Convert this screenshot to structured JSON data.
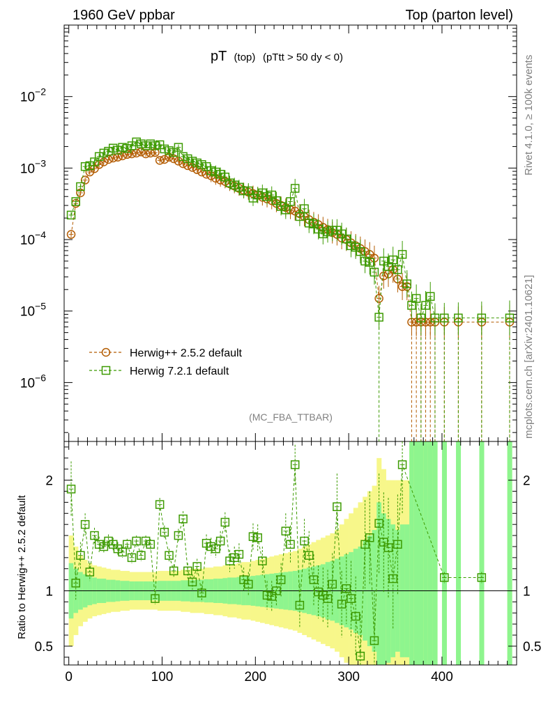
{
  "header": {
    "left": "1960 GeV ppbar",
    "right": "Top (parton level)"
  },
  "side_labels": {
    "rivet": "Rivet 4.1.0, ≥ 100k events",
    "mcplots": "mcplots.cern.ch [arXiv:2401.10621]"
  },
  "plot_title": {
    "main": "pT",
    "sub1": "(top)",
    "sub2": "(pTtt > 50 dy < 0)"
  },
  "analysis_tag": "(MC_FBA_TTBAR)",
  "colors": {
    "herwigpp": "#b35b00",
    "herwig7": "#3c9a00",
    "band_inner": "#8ef58e",
    "band_outer": "#f7f78a"
  },
  "chart_data": [
    {
      "type": "scatter",
      "panel": "main",
      "yscale": "log",
      "xlim": [
        -5,
        480
      ],
      "ylim": [
        1.5e-07,
        0.1
      ],
      "y_tick_labels": [
        {
          "base": "10",
          "exp": "−2",
          "value": 0.01
        },
        {
          "base": "10",
          "exp": "−3",
          "value": 0.001
        },
        {
          "base": "10",
          "exp": "−4",
          "value": 0.0001
        },
        {
          "base": "10",
          "exp": "−5",
          "value": 1e-05
        },
        {
          "base": "10",
          "exp": "−6",
          "value": 1e-06
        }
      ],
      "legend": {
        "position": "lower-left",
        "entries": [
          "Herwig++ 2.5.2 default",
          "Herwig 7.2.1 default"
        ]
      },
      "series": [
        {
          "name": "Herwig++ 2.5.2 default",
          "marker": "circle",
          "x": [
            2.5,
            7.5,
            12.5,
            17.5,
            22.5,
            27.5,
            32.5,
            37.5,
            42.5,
            47.5,
            52.5,
            57.5,
            62.5,
            67.5,
            72.5,
            77.5,
            82.5,
            87.5,
            92.5,
            97.5,
            102.5,
            107.5,
            112.5,
            117.5,
            122.5,
            127.5,
            132.5,
            137.5,
            142.5,
            147.5,
            152.5,
            157.5,
            162.5,
            167.5,
            172.5,
            177.5,
            182.5,
            187.5,
            192.5,
            197.5,
            202.5,
            207.5,
            212.5,
            217.5,
            222.5,
            227.5,
            232.5,
            237.5,
            242.5,
            247.5,
            252.5,
            257.5,
            262.5,
            267.5,
            272.5,
            277.5,
            282.5,
            287.5,
            292.5,
            297.5,
            302.5,
            307.5,
            312.5,
            317.5,
            322.5,
            327.5,
            332.5,
            337.5,
            342.5,
            347.5,
            352.5,
            357.5,
            362.5,
            367.5,
            372.5,
            377.5,
            382.5,
            387.5,
            392.5,
            402.5,
            417.5,
            442.5,
            472.5
          ],
          "y": [
            0.000118,
            0.00032,
            0.00045,
            0.00068,
            0.00088,
            0.00098,
            0.00112,
            0.00122,
            0.00132,
            0.00138,
            0.00142,
            0.00148,
            0.00155,
            0.00158,
            0.00162,
            0.00168,
            0.00158,
            0.00162,
            0.00165,
            0.00128,
            0.00132,
            0.00142,
            0.00135,
            0.00125,
            0.00115,
            0.00108,
            0.00102,
            0.00095,
            0.00088,
            0.00082,
            0.00078,
            0.00072,
            0.00068,
            0.00065,
            0.0006,
            0.00056,
            0.00052,
            0.00049,
            0.00046,
            0.00044,
            0.00042,
            0.00039,
            0.00037,
            0.00035,
            0.00032,
            0.0003,
            0.00028,
            0.00026,
            0.00025,
            0.00023,
            0.00021,
            0.00019,
            0.000175,
            0.000162,
            0.000148,
            0.000138,
            0.000125,
            0.000118,
            0.000105,
            0.0001,
            9e-05,
            8.2e-05,
            7.5e-05,
            6.8e-05,
            6.2e-05,
            5.5e-05,
            1.5e-05,
            3.1e-05,
            3.3e-05,
            3.8e-05,
            2.8e-05,
            2.2e-05,
            2.2e-05,
            7e-06,
            7e-06,
            7e-06,
            7e-06,
            7e-06,
            7e-06,
            7e-06,
            7e-06,
            7e-06,
            7e-06
          ]
        },
        {
          "name": "Herwig 7.2.1 default",
          "marker": "square",
          "x": [
            2.5,
            7.5,
            12.5,
            17.5,
            22.5,
            27.5,
            32.5,
            37.5,
            42.5,
            47.5,
            52.5,
            57.5,
            62.5,
            67.5,
            72.5,
            77.5,
            82.5,
            87.5,
            92.5,
            97.5,
            102.5,
            107.5,
            112.5,
            117.5,
            122.5,
            127.5,
            132.5,
            137.5,
            142.5,
            147.5,
            152.5,
            157.5,
            162.5,
            167.5,
            172.5,
            177.5,
            182.5,
            187.5,
            192.5,
            197.5,
            202.5,
            207.5,
            212.5,
            217.5,
            222.5,
            227.5,
            232.5,
            237.5,
            242.5,
            247.5,
            252.5,
            257.5,
            262.5,
            267.5,
            272.5,
            277.5,
            282.5,
            287.5,
            292.5,
            297.5,
            302.5,
            307.5,
            312.5,
            317.5,
            322.5,
            327.5,
            332.5,
            337.5,
            342.5,
            347.5,
            352.5,
            357.5,
            362.5,
            367.5,
            372.5,
            377.5,
            382.5,
            387.5,
            392.5,
            402.5,
            417.5,
            442.5,
            472.5
          ],
          "y": [
            0.00022,
            0.00034,
            0.00055,
            0.00105,
            0.00108,
            0.00122,
            0.00145,
            0.00162,
            0.00172,
            0.0019,
            0.00178,
            0.00195,
            0.00188,
            0.00205,
            0.00232,
            0.00218,
            0.00205,
            0.00218,
            0.00205,
            0.00212,
            0.00185,
            0.00175,
            0.00165,
            0.00195,
            0.00145,
            0.00135,
            0.00125,
            0.00118,
            0.00112,
            0.00105,
            0.00092,
            0.00088,
            0.00082,
            0.00075,
            0.00062,
            0.00058,
            0.00054,
            0.00048,
            0.00048,
            0.00038,
            0.00042,
            0.00045,
            0.0004,
            0.00042,
            0.00035,
            0.00029,
            0.00026,
            0.00034,
            0.00052,
            0.00021,
            0.00027,
            0.00017,
            0.000165,
            0.00014,
            0.00012,
            0.000128,
            0.000135,
            0.000135,
            0.00012,
            0.000102,
            8.2e-05,
            7.8e-05,
            6.8e-05,
            5e-05,
            4.8e-05,
            3.5e-05,
            8.2e-06,
            5e-05,
            4.2e-05,
            5.2e-05,
            3.8e-05,
            6.2e-05,
            2.4e-05,
            1.2e-05,
            1.5e-05,
            8e-06,
            1.2e-05,
            1.6e-05,
            8e-06,
            8e-06,
            8e-06,
            8e-06,
            8e-06
          ]
        }
      ]
    },
    {
      "type": "scatter",
      "panel": "ratio",
      "ylabel": "Ratio to Herwig++ 2.5.2 default",
      "xlim": [
        -5,
        480
      ],
      "ylim": [
        0.33,
        2.35
      ],
      "x_ticks": [
        0,
        100,
        200,
        300,
        400
      ],
      "y_ticks": [
        0.5,
        1,
        2
      ],
      "reference_line": 1,
      "band_inner_half_width": [
        0.25,
        0.2,
        0.17,
        0.15,
        0.13,
        0.12,
        0.11,
        0.11,
        0.1,
        0.1,
        0.095,
        0.09,
        0.09,
        0.085,
        0.085,
        0.085,
        0.085,
        0.085,
        0.085,
        0.09,
        0.09,
        0.09,
        0.09,
        0.09,
        0.095,
        0.095,
        0.1,
        0.1,
        0.1,
        0.105,
        0.105,
        0.11,
        0.11,
        0.115,
        0.12,
        0.12,
        0.125,
        0.13,
        0.13,
        0.135,
        0.14,
        0.145,
        0.15,
        0.155,
        0.16,
        0.165,
        0.17,
        0.175,
        0.18,
        0.19,
        0.2,
        0.21,
        0.22,
        0.23,
        0.24,
        0.26,
        0.27,
        0.29,
        0.31,
        0.33,
        0.35,
        0.38,
        0.4,
        0.45,
        0.5,
        0.55,
        0.8,
        0.7,
        0.65,
        0.6,
        0.55,
        0.6,
        0.6,
        1.5,
        1.5,
        1.5,
        1.5,
        1.5,
        1.5,
        1.5,
        1.5,
        1.5,
        1.5
      ],
      "band_outer_half_width": [
        0.5,
        0.4,
        0.32,
        0.28,
        0.25,
        0.23,
        0.22,
        0.21,
        0.2,
        0.19,
        0.19,
        0.18,
        0.18,
        0.17,
        0.17,
        0.17,
        0.17,
        0.17,
        0.17,
        0.18,
        0.18,
        0.18,
        0.18,
        0.18,
        0.19,
        0.19,
        0.2,
        0.2,
        0.2,
        0.21,
        0.21,
        0.22,
        0.22,
        0.23,
        0.24,
        0.24,
        0.25,
        0.26,
        0.26,
        0.27,
        0.28,
        0.29,
        0.3,
        0.31,
        0.32,
        0.33,
        0.34,
        0.35,
        0.36,
        0.38,
        0.4,
        0.42,
        0.44,
        0.46,
        0.48,
        0.5,
        0.52,
        0.55,
        0.6,
        0.65,
        0.7,
        0.75,
        0.8,
        0.85,
        0.9,
        0.95,
        1.2,
        1.1,
        1.0,
        1.0,
        1.0,
        1.0,
        1.0,
        1.5,
        1.5,
        1.5,
        1.5,
        1.5,
        1.5,
        1.5,
        1.5,
        1.5,
        1.5
      ],
      "series": [
        {
          "name": "Herwig 7.2.1 default",
          "marker": "square",
          "x": [
            2.5,
            7.5,
            12.5,
            17.5,
            22.5,
            27.5,
            32.5,
            37.5,
            42.5,
            47.5,
            52.5,
            57.5,
            62.5,
            67.5,
            72.5,
            77.5,
            82.5,
            87.5,
            92.5,
            97.5,
            102.5,
            107.5,
            112.5,
            117.5,
            122.5,
            127.5,
            132.5,
            137.5,
            142.5,
            147.5,
            152.5,
            157.5,
            162.5,
            167.5,
            172.5,
            177.5,
            182.5,
            187.5,
            192.5,
            197.5,
            202.5,
            207.5,
            212.5,
            217.5,
            222.5,
            227.5,
            232.5,
            237.5,
            242.5,
            247.5,
            252.5,
            257.5,
            262.5,
            267.5,
            272.5,
            277.5,
            282.5,
            287.5,
            292.5,
            297.5,
            302.5,
            307.5,
            312.5,
            317.5,
            322.5,
            327.5,
            332.5,
            337.5,
            342.5,
            347.5,
            352.5,
            357.5,
            402.5,
            442.5
          ],
          "y": [
            1.92,
            1.07,
            1.32,
            1.6,
            1.17,
            1.5,
            1.42,
            1.4,
            1.45,
            1.42,
            1.38,
            1.35,
            1.42,
            1.3,
            1.45,
            1.32,
            1.45,
            1.42,
            0.93,
            1.78,
            1.53,
            1.32,
            1.18,
            1.5,
            1.65,
            1.18,
            1.08,
            1.22,
            0.98,
            1.43,
            1.4,
            1.38,
            1.45,
            1.62,
            1.27,
            1.3,
            1.33,
            1.1,
            1.06,
            1.49,
            1.48,
            1.27,
            0.96,
            0.95,
            1.0,
            1.1,
            1.54,
            1.42,
            2.14,
            0.87,
            1.45,
            1.32,
            1.1,
            0.99,
            0.96,
            0.93,
            1.06,
            1.76,
            0.88,
            1.02,
            0.93,
            0.77,
            0.41,
            1.42,
            1.48,
            0.55,
            1.61,
            1.44,
            1.39,
            1.11,
            1.42,
            2.14,
            1.12,
            1.12
          ],
          "yerr": [
            0.25,
            0.15,
            0.12,
            0.1,
            0.08,
            0.07,
            0.07,
            0.06,
            0.06,
            0.06,
            0.06,
            0.05,
            0.05,
            0.05,
            0.05,
            0.05,
            0.05,
            0.05,
            0.05,
            0.06,
            0.06,
            0.06,
            0.06,
            0.06,
            0.07,
            0.07,
            0.07,
            0.07,
            0.08,
            0.08,
            0.08,
            0.08,
            0.09,
            0.09,
            0.1,
            0.1,
            0.1,
            0.11,
            0.11,
            0.12,
            0.12,
            0.13,
            0.13,
            0.14,
            0.14,
            0.15,
            0.16,
            0.17,
            0.18,
            0.2,
            0.2,
            0.22,
            0.23,
            0.24,
            0.25,
            0.26,
            0.28,
            0.3,
            0.3,
            0.32,
            0.34,
            0.36,
            0.38,
            0.4,
            0.42,
            0.45,
            0.45,
            0.45,
            0.45,
            0.45,
            0.45,
            0.45,
            0.05,
            0.05
          ]
        }
      ]
    }
  ]
}
